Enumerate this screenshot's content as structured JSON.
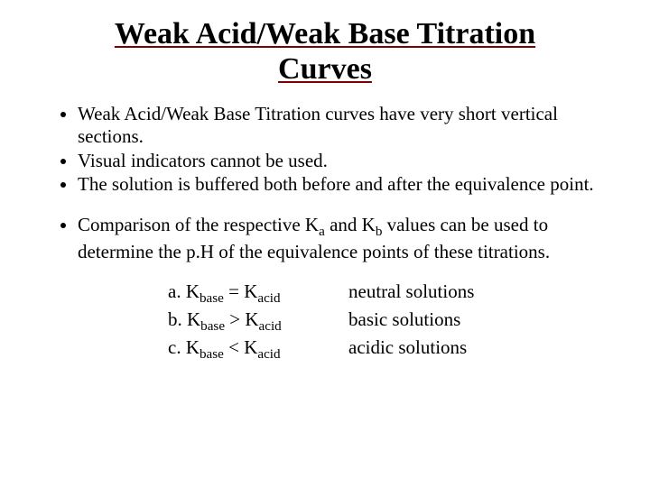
{
  "title": "Weak Acid/Weak Base Titration Curves",
  "bullets_group1": [
    "Weak Acid/Weak Base Titration curves have very short vertical sections.",
    "Visual indicators cannot be used.",
    "The solution is buffered both before and after the equivalence point."
  ],
  "bullets_group2_prefix": "Comparison of the respective K",
  "bullets_group2_sub_a": "a",
  "bullets_group2_mid": " and K",
  "bullets_group2_sub_b": "b",
  "bullets_group2_suffix": " values can be used to determine the p.H of the equivalence points of these titrations.",
  "comparisons": [
    {
      "letter": "a.",
      "lhs_pre": "K",
      "lhs_sub": "base",
      "op": " = K",
      "rhs_sub": "acid",
      "result": "neutral solutions"
    },
    {
      "letter": "b.",
      "lhs_pre": " K",
      "lhs_sub": "base",
      "op": " > K",
      "rhs_sub": "acid",
      "result": "basic solutions"
    },
    {
      "letter": "c.",
      "lhs_pre": " K",
      "lhs_sub": "base",
      "op": " < K",
      "rhs_sub": "acid",
      "result": "acidic solutions"
    }
  ],
  "style": {
    "title_fontsize": 34,
    "body_fontsize": 21,
    "title_underline_color": "#800000",
    "text_color": "#000000",
    "background_color": "#ffffff",
    "font_family": "Times New Roman"
  }
}
